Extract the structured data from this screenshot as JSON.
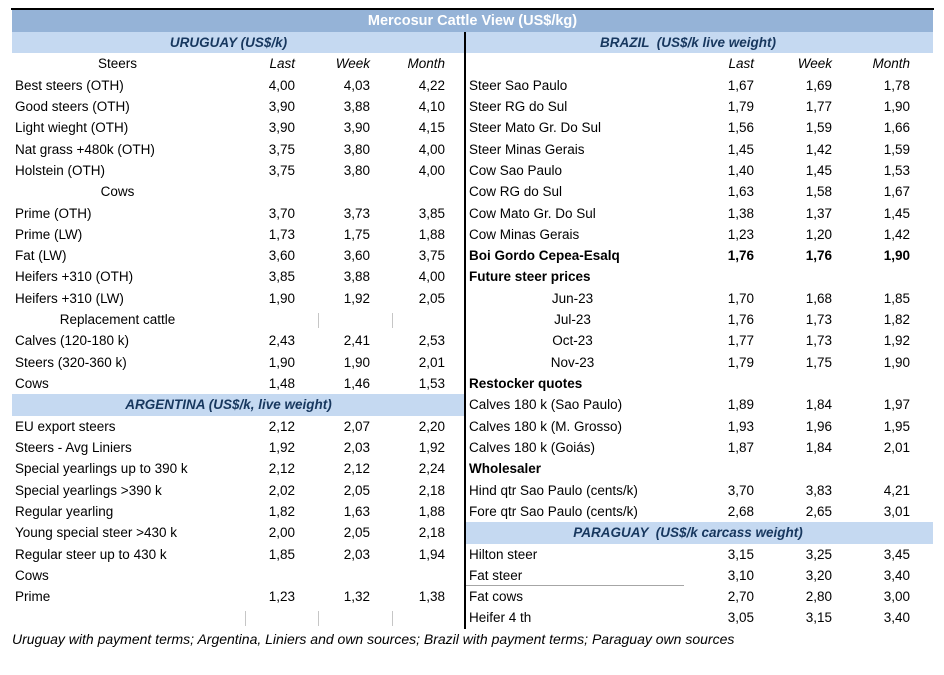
{
  "title": "Mercosur Cattle View (US$/kg)",
  "footer": "Uruguay with payment terms; Argentina, Liniers and own sources; Brazil with payment terms; Paraguay own sources",
  "colors": {
    "title_bg": "#95B3D7",
    "title_text": "#FFFFFF",
    "section_band_bg": "#C5D9F1",
    "section_band_text": "#17375E",
    "body_text": "#000000"
  },
  "columns": [
    "Last",
    "Week",
    "Month"
  ],
  "left_panel": {
    "rows": [
      {
        "style": "band",
        "label": "URUGUAY (US$/k)"
      },
      {
        "style": "colhead",
        "label": "Steers",
        "last": "Last",
        "week": "Week",
        "month": "Month"
      },
      {
        "style": "data",
        "label": "Best steers (OTH)",
        "last": "4,00",
        "week": "4,03",
        "month": "4,22"
      },
      {
        "style": "data",
        "label": "Good steers (OTH)",
        "last": "3,90",
        "week": "3,88",
        "month": "4,10"
      },
      {
        "style": "data",
        "label": "Light wieght (OTH)",
        "last": "3,90",
        "week": "3,90",
        "month": "4,15"
      },
      {
        "style": "data",
        "label": "Nat grass +480k (OTH)",
        "last": "3,75",
        "week": "3,80",
        "month": "4,00"
      },
      {
        "style": "data",
        "label": "Holstein (OTH)",
        "last": "3,75",
        "week": "3,80",
        "month": "4,00"
      },
      {
        "style": "center",
        "label": "Cows"
      },
      {
        "style": "data",
        "label": "Prime (OTH)",
        "last": "3,70",
        "week": "3,73",
        "month": "3,85"
      },
      {
        "style": "data",
        "label": "Prime (LW)",
        "last": "1,73",
        "week": "1,75",
        "month": "1,88"
      },
      {
        "style": "data",
        "label": "Fat (LW)",
        "last": "3,60",
        "week": "3,60",
        "month": "3,75"
      },
      {
        "style": "data",
        "label": "Heifers +310 (OTH)",
        "last": "3,85",
        "week": "3,88",
        "month": "4,00"
      },
      {
        "style": "data",
        "label": "Heifers +310 (LW)",
        "last": "1,90",
        "week": "1,92",
        "month": "2,05"
      },
      {
        "style": "center",
        "label": "Replacement cattle",
        "ticks": [
          2,
          3
        ]
      },
      {
        "style": "data",
        "label": "Calves (120-180 k)",
        "last": "2,43",
        "week": "2,41",
        "month": "2,53"
      },
      {
        "style": "data",
        "label": "Steers (320-360 k)",
        "last": "1,90",
        "week": "1,90",
        "month": "2,01"
      },
      {
        "style": "data",
        "label": "Cows",
        "last": "1,48",
        "week": "1,46",
        "month": "1,53"
      },
      {
        "style": "band",
        "label": "ARGENTINA (US$/k, live weight)"
      },
      {
        "style": "data",
        "label": "EU export steers",
        "last": "2,12",
        "week": "2,07",
        "month": "2,20"
      },
      {
        "style": "data",
        "label": "Steers - Avg Liniers",
        "last": "1,92",
        "week": "2,03",
        "month": "1,92"
      },
      {
        "style": "data",
        "label": "Special yearlings up to 390 k",
        "last": "2,12",
        "week": "2,12",
        "month": "2,24"
      },
      {
        "style": "data",
        "label": "Special yearlings >390 k",
        "last": "2,02",
        "week": "2,05",
        "month": "2,18"
      },
      {
        "style": "data",
        "label": "Regular yearling",
        "last": "1,82",
        "week": "1,63",
        "month": "1,88"
      },
      {
        "style": "data",
        "label": "Young special steer >430 k",
        "last": "2,00",
        "week": "2,05",
        "month": "2,18"
      },
      {
        "style": "data",
        "label": "Regular steer up to 430 k",
        "last": "1,85",
        "week": "2,03",
        "month": "1,94"
      },
      {
        "style": "data",
        "label": "Cows",
        "last": "",
        "week": "",
        "month": ""
      },
      {
        "style": "data",
        "label": "Prime",
        "last": "1,23",
        "week": "1,32",
        "month": "1,38"
      },
      {
        "style": "data",
        "label": "",
        "last": "",
        "week": "",
        "month": "",
        "ticks": [
          1,
          2,
          3
        ]
      }
    ]
  },
  "right_panel": {
    "rows": [
      {
        "style": "band",
        "label": "BRAZIL  (US$/k live weight)"
      },
      {
        "style": "colhead",
        "label": "",
        "last": "Last",
        "week": "Week",
        "month": "Month"
      },
      {
        "style": "data",
        "label": "Steer Sao Paulo",
        "last": "1,67",
        "week": "1,69",
        "month": "1,78"
      },
      {
        "style": "data",
        "label": "Steer RG do Sul",
        "last": "1,79",
        "week": "1,77",
        "month": "1,90"
      },
      {
        "style": "data",
        "label": "Steer Mato Gr. Do Sul",
        "last": "1,56",
        "week": "1,59",
        "month": "1,66"
      },
      {
        "style": "data",
        "label": "Steer Minas Gerais",
        "last": "1,45",
        "week": "1,42",
        "month": "1,59"
      },
      {
        "style": "data",
        "label": "Cow Sao Paulo",
        "last": "1,40",
        "week": "1,45",
        "month": "1,53"
      },
      {
        "style": "data",
        "label": "Cow RG do Sul",
        "last": "1,63",
        "week": "1,58",
        "month": "1,67"
      },
      {
        "style": "data",
        "label": "Cow Mato Gr. Do Sul",
        "last": "1,38",
        "week": "1,37",
        "month": "1,45"
      },
      {
        "style": "data",
        "label": "Cow Minas Gerais",
        "last": "1,23",
        "week": "1,20",
        "month": "1,42"
      },
      {
        "style": "data",
        "bold": true,
        "label": "Boi Gordo Cepea-Esalq",
        "last": "1,76",
        "week": "1,76",
        "month": "1,90"
      },
      {
        "style": "boldlabel",
        "label": "Future steer prices"
      },
      {
        "style": "month",
        "label": "Jun-23",
        "last": "1,70",
        "week": "1,68",
        "month": "1,85"
      },
      {
        "style": "month",
        "label": "Jul-23",
        "last": "1,76",
        "week": "1,73",
        "month": "1,82"
      },
      {
        "style": "month",
        "label": "Oct-23",
        "last": "1,77",
        "week": "1,73",
        "month": "1,92"
      },
      {
        "style": "month",
        "label": "Nov-23",
        "last": "1,79",
        "week": "1,75",
        "month": "1,90"
      },
      {
        "style": "boldlabel",
        "label": "Restocker quotes"
      },
      {
        "style": "data",
        "label": "Calves 180 k (Sao Paulo)",
        "last": "1,89",
        "week": "1,84",
        "month": "1,97"
      },
      {
        "style": "data",
        "label": "Calves 180 k (M. Grosso)",
        "last": "1,93",
        "week": "1,96",
        "month": "1,95"
      },
      {
        "style": "data",
        "label": "Calves 180 k (Goiás)",
        "last": "1,87",
        "week": "1,84",
        "month": "2,01"
      },
      {
        "style": "boldlabel",
        "label": "Wholesaler"
      },
      {
        "style": "data",
        "label": "Hind qtr Sao Paulo (cents/k)",
        "last": "3,70",
        "week": "3,83",
        "month": "4,21"
      },
      {
        "style": "data",
        "label": "Fore qtr Sao Paulo (cents/k)",
        "last": "2,68",
        "week": "2,65",
        "month": "3,01"
      },
      {
        "style": "band",
        "label": "PARAGUAY  (US$/k carcass weight)"
      },
      {
        "style": "data",
        "label": "Hilton steer",
        "last": "3,15",
        "week": "3,25",
        "month": "3,45"
      },
      {
        "style": "data",
        "label": "Fat steer",
        "last": "3,10",
        "week": "3,20",
        "month": "3,40",
        "underline": true
      },
      {
        "style": "data",
        "label": "Fat cows",
        "last": "2,70",
        "week": "2,80",
        "month": "3,00"
      },
      {
        "style": "data",
        "label": "Heifer 4 th",
        "last": "3,05",
        "week": "3,15",
        "month": "3,40"
      }
    ]
  }
}
